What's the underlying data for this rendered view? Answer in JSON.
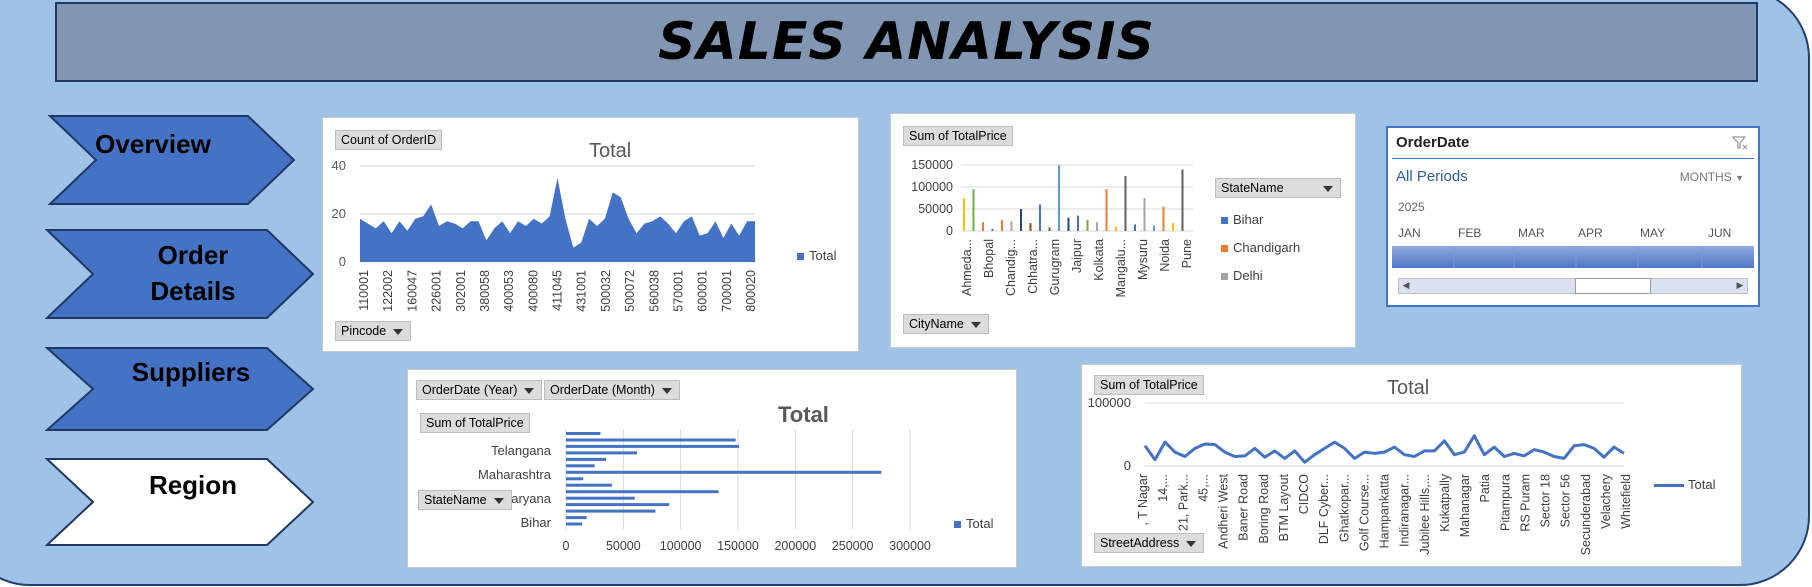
{
  "header": {
    "title": "SALES ANALYSIS"
  },
  "nav": {
    "items": [
      {
        "label": "Overview",
        "fill": "#4472c4"
      },
      {
        "label": "Order\nDetails",
        "fill": "#4472c4"
      },
      {
        "label": "Suppliers",
        "fill": "#4472c4"
      },
      {
        "label": "Region",
        "fill": "#ffffff"
      }
    ]
  },
  "slicer": {
    "title": "OrderDate",
    "periods_label": "All Periods",
    "level_label": "MONTHS",
    "year": "2025",
    "months": [
      "JAN",
      "FEB",
      "MAR",
      "APR",
      "MAY",
      "JUN"
    ]
  },
  "colors": {
    "accent": "#4472c4",
    "background": "#9fc3e7",
    "title_bar": "#8096b2"
  },
  "chart_data": [
    {
      "id": "orders-by-pincode",
      "type": "area",
      "title": "Total",
      "value_field": "Count of OrderID",
      "axis_field": "Pincode",
      "legend": "Total",
      "x_tick_labels": [
        "110001",
        "122002",
        "160047",
        "226001",
        "302001",
        "380058",
        "400053",
        "400080",
        "411045",
        "431001",
        "500032",
        "500072",
        "560038",
        "570001",
        "600001",
        "700001",
        "800020"
      ],
      "ylim": [
        0,
        40
      ],
      "y_ticks": [
        0,
        20,
        40
      ],
      "values": [
        18,
        16,
        14,
        17,
        12,
        17,
        13,
        18,
        19,
        24,
        15,
        17,
        16,
        14,
        17,
        17,
        9,
        14,
        17,
        12,
        17,
        15,
        18,
        16,
        19,
        35,
        18,
        6,
        8,
        18,
        15,
        18,
        29,
        27,
        18,
        12,
        16,
        17,
        19,
        16,
        12,
        17,
        19,
        11,
        12,
        17,
        10,
        16,
        11,
        17,
        17
      ],
      "grid": true
    },
    {
      "id": "totalprice-by-city",
      "type": "bar",
      "value_field": "Sum of TotalPrice",
      "axis_field": "CityName",
      "legend_field": "StateName",
      "legend_items": [
        {
          "name": "Bihar",
          "color": "#4472c4"
        },
        {
          "name": "Chandigarh",
          "color": "#ed7d31"
        },
        {
          "name": "Delhi",
          "color": "#a5a5a5"
        }
      ],
      "x_tick_labels": [
        "Ahmeda...",
        "Bhopal",
        "Chandig...",
        "Chhatra...",
        "Gurugram",
        "Jaipur",
        "Kolkata",
        "Mangalu...",
        "Mysuru",
        "Noida",
        "Pune"
      ],
      "ylim": [
        0,
        150000
      ],
      "y_ticks": [
        0,
        50000,
        100000,
        150000
      ],
      "bars": [
        {
          "v": 75000,
          "c": "#ffc000"
        },
        {
          "v": 95000,
          "c": "#70ad47"
        },
        {
          "v": 20000,
          "c": "#ed7d31"
        },
        {
          "v": 5000,
          "c": "#4472c4"
        },
        {
          "v": 25000,
          "c": "#ed7d31"
        },
        {
          "v": 22000,
          "c": "#a5a5a5"
        },
        {
          "v": 50000,
          "c": "#264478"
        },
        {
          "v": 18000,
          "c": "#9e480e"
        },
        {
          "v": 60000,
          "c": "#4472c4"
        },
        {
          "v": 8000,
          "c": "#636363"
        },
        {
          "v": 150000,
          "c": "#5b9bd5"
        },
        {
          "v": 30000,
          "c": "#264478"
        },
        {
          "v": 35000,
          "c": "#4472c4"
        },
        {
          "v": 25000,
          "c": "#70ad47"
        },
        {
          "v": 20000,
          "c": "#a5a5a5"
        },
        {
          "v": 95000,
          "c": "#ed7d31"
        },
        {
          "v": 10000,
          "c": "#ffc000"
        },
        {
          "v": 125000,
          "c": "#636363"
        },
        {
          "v": 15000,
          "c": "#4472c4"
        },
        {
          "v": 75000,
          "c": "#a5a5a5"
        },
        {
          "v": 12000,
          "c": "#5b9bd5"
        },
        {
          "v": 55000,
          "c": "#ed7d31"
        },
        {
          "v": 18000,
          "c": "#ffc000"
        },
        {
          "v": 140000,
          "c": "#636363"
        }
      ],
      "grid": true
    },
    {
      "id": "totalprice-by-state",
      "type": "bar",
      "orientation": "horizontal",
      "title": "Total",
      "value_field": "Sum of TotalPrice",
      "filters": [
        "OrderDate (Year)",
        "OrderDate (Month)"
      ],
      "axis_field": "StateName",
      "legend": "Total",
      "y_tick_labels": [
        "Telangana",
        "Maharashtra",
        "aryana",
        "Bihar"
      ],
      "xlim": [
        0,
        300000
      ],
      "x_ticks": [
        0,
        50000,
        100000,
        150000,
        200000,
        250000,
        300000
      ],
      "values": [
        30000,
        148000,
        151000,
        62000,
        35000,
        25000,
        275000,
        15000,
        40000,
        133000,
        60000,
        90000,
        78000,
        18000,
        14000
      ],
      "grid": true
    },
    {
      "id": "totalprice-by-address",
      "type": "line",
      "title": "Total",
      "value_field": "Sum of TotalPrice",
      "axis_field": "StreetAddress",
      "legend": "Total",
      "x_tick_labels": [
        ", T Nagar",
        "14,...",
        "21, Park...",
        "45,...",
        "Andheri West",
        "Baner Road",
        "Boring Road",
        "BTM Layout",
        "CIDCO",
        "DLF Cyber...",
        "Ghatkopar...",
        "Golf Course...",
        "Hampankatta",
        "Indiranagar...",
        "Jubilee Hills,...",
        "Kukatpally",
        "Mahanagar",
        "Patia",
        "Pitampura",
        "RS Puram",
        "Sector 18",
        "Sector 56",
        "Secunderabad",
        "Velachery",
        "Whitefield"
      ],
      "ylim": [
        0,
        100000
      ],
      "y_ticks": [
        0,
        100000
      ],
      "values": [
        32000,
        10000,
        38000,
        22000,
        15000,
        28000,
        35000,
        34000,
        22000,
        15000,
        16000,
        28000,
        14000,
        24000,
        12000,
        24000,
        6000,
        18000,
        28000,
        38000,
        28000,
        12000,
        22000,
        20000,
        22000,
        30000,
        18000,
        15000,
        24000,
        24000,
        40000,
        18000,
        22000,
        48000,
        18000,
        30000,
        15000,
        20000,
        16000,
        26000,
        22000,
        15000,
        12000,
        32000,
        34000,
        28000,
        14000,
        30000,
        20000
      ],
      "grid": true
    }
  ]
}
